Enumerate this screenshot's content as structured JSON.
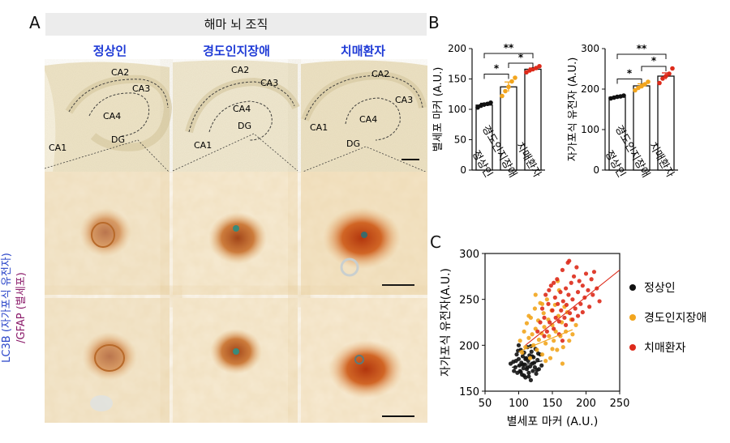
{
  "panel_a": {
    "letter": "A",
    "header": "해마 뇌 조직",
    "groups": [
      "정상인",
      "경도인지장애",
      "치매환자"
    ],
    "regions": [
      "CA1",
      "CA2",
      "CA3",
      "CA4",
      "DG"
    ],
    "stain_label_1": "LC3B (자가포식 유전자)",
    "stain_label_2": "/GFAP (별세포)"
  },
  "panel_b": {
    "letter": "B"
  },
  "panel_c": {
    "letter": "C"
  },
  "colors": {
    "normal": "#111111",
    "mci": "#f2a51d",
    "dementia": "#dd2a1a",
    "group_title": "#1f3bd6",
    "tissue_bg": "#f2ead2",
    "cell_brown": "#b8561a"
  },
  "chart_data": [
    {
      "type": "bar",
      "categories": [
        "정상인",
        "경도인지장애",
        "치매환자"
      ],
      "values": [
        107,
        137,
        166
      ],
      "points": [
        [
          103,
          106,
          108,
          109,
          111
        ],
        [
          122,
          130,
          137,
          146,
          152
        ],
        [
          161,
          164,
          166,
          168,
          171
        ]
      ],
      "errors": [
        3,
        8,
        2
      ],
      "ylabel": "별세포 마커 (A.U.)",
      "ylim": [
        0,
        200
      ],
      "yticks": [
        0,
        50,
        100,
        150,
        200
      ],
      "significance": [
        "*",
        "*",
        "**"
      ]
    },
    {
      "type": "bar",
      "categories": [
        "정상인",
        "경도인지장애",
        "치매환자"
      ],
      "values": [
        180,
        208,
        232
      ],
      "points": [
        [
          177,
          179,
          181,
          182,
          184
        ],
        [
          197,
          203,
          207,
          212,
          218
        ],
        [
          215,
          226,
          232,
          238,
          251
        ]
      ],
      "errors": [
        2,
        5,
        8
      ],
      "ylabel": "자가포식 유전자 (A.U.)",
      "ylim": [
        0,
        300
      ],
      "yticks": [
        0,
        100,
        200,
        300
      ],
      "significance": [
        "*",
        "*",
        "**"
      ]
    },
    {
      "type": "scatter",
      "xlabel": "별세포 마커 (A.U.)",
      "ylabel": "자가포식 유전자(A.U.)",
      "xlim": [
        50,
        250
      ],
      "ylim": [
        150,
        300
      ],
      "xticks": [
        50,
        100,
        150,
        200,
        250
      ],
      "yticks": [
        150,
        200,
        250,
        300
      ],
      "legend": [
        "정상인",
        "경도인지장애",
        "치매환자"
      ],
      "legend_position": "right",
      "series": [
        {
          "name": "정상인",
          "fit": [
            [
              90,
              176
            ],
            [
              135,
              183
            ]
          ],
          "points": [
            [
              92,
              182
            ],
            [
              95,
              176
            ],
            [
              97,
              190
            ],
            [
              98,
              170
            ],
            [
              100,
              185
            ],
            [
              101,
              178
            ],
            [
              102,
              172
            ],
            [
              103,
              195
            ],
            [
              104,
              181
            ],
            [
              105,
              168
            ],
            [
              106,
              188
            ],
            [
              107,
              175
            ],
            [
              108,
              192
            ],
            [
              109,
              179
            ],
            [
              110,
              165
            ],
            [
              111,
              186
            ],
            [
              112,
              174
            ],
            [
              113,
              198
            ],
            [
              114,
              183
            ],
            [
              115,
              170
            ],
            [
              116,
              189
            ],
            [
              117,
              177
            ],
            [
              118,
              162
            ],
            [
              119,
              193
            ],
            [
              120,
              180
            ],
            [
              121,
              172
            ],
            [
              122,
              187
            ],
            [
              124,
              176
            ],
            [
              125,
              196
            ],
            [
              126,
              169
            ],
            [
              128,
              184
            ],
            [
              130,
              174
            ],
            [
              132,
              190
            ],
            [
              134,
              178
            ],
            [
              96,
              183
            ],
            [
              99,
              194
            ],
            [
              103,
              171
            ],
            [
              106,
              179
            ],
            [
              110,
              185
            ],
            [
              115,
              166
            ],
            [
              120,
              188
            ],
            [
              88,
              180
            ],
            [
              93,
              172
            ],
            [
              113,
              176
            ],
            [
              118,
              199
            ],
            [
              123,
              181
            ],
            [
              127,
              173
            ],
            [
              129,
              191
            ],
            [
              100,
              200
            ],
            [
              108,
              167
            ]
          ]
        },
        {
          "name": "경도인지장애",
          "fit": [
            [
              100,
              193
            ],
            [
              180,
              217
            ]
          ],
          "points": [
            [
              102,
              205
            ],
            [
              105,
              192
            ],
            [
              108,
              215
            ],
            [
              110,
              198
            ],
            [
              112,
              224
            ],
            [
              115,
              208
            ],
            [
              117,
              186
            ],
            [
              118,
              230
            ],
            [
              120,
              212
            ],
            [
              122,
              200
            ],
            [
              124,
              240
            ],
            [
              125,
              218
            ],
            [
              127,
              195
            ],
            [
              129,
              227
            ],
            [
              130,
              206
            ],
            [
              132,
              246
            ],
            [
              134,
              213
            ],
            [
              135,
              190
            ],
            [
              137,
              235
            ],
            [
              138,
              220
            ],
            [
              140,
              202
            ],
            [
              142,
              250
            ],
            [
              144,
              228
            ],
            [
              145,
              210
            ],
            [
              147,
              186
            ],
            [
              149,
              238
            ],
            [
              150,
              222
            ],
            [
              152,
              205
            ],
            [
              154,
              244
            ],
            [
              155,
              215
            ],
            [
              157,
              195
            ],
            [
              159,
              232
            ],
            [
              160,
              260
            ],
            [
              162,
              210
            ],
            [
              164,
              225
            ],
            [
              166,
              198
            ],
            [
              168,
              242
            ],
            [
              170,
              215
            ],
            [
              172,
              236
            ],
            [
              175,
              205
            ],
            [
              178,
              228
            ],
            [
              180,
              212
            ],
            [
              150,
              196
            ],
            [
              140,
              183
            ],
            [
              115,
              232
            ],
            [
              125,
              255
            ],
            [
              135,
              245
            ],
            [
              165,
              180
            ],
            [
              185,
              222
            ],
            [
              158,
              270
            ]
          ]
        },
        {
          "name": "치매환자",
          "fit": [
            [
              110,
              200
            ],
            [
              250,
              282
            ]
          ],
          "points": [
            [
              128,
              215
            ],
            [
              132,
              225
            ],
            [
              135,
              240
            ],
            [
              138,
              230
            ],
            [
              140,
              255
            ],
            [
              142,
              215
            ],
            [
              144,
              245
            ],
            [
              146,
              225
            ],
            [
              148,
              265
            ],
            [
              150,
              238
            ],
            [
              152,
              218
            ],
            [
              154,
              252
            ],
            [
              155,
              230
            ],
            [
              157,
              272
            ],
            [
              158,
              245
            ],
            [
              160,
              226
            ],
            [
              162,
              258
            ],
            [
              163,
              238
            ],
            [
              165,
              282
            ],
            [
              166,
              248
            ],
            [
              168,
              230
            ],
            [
              170,
              262
            ],
            [
              171,
              244
            ],
            [
              173,
              290
            ],
            [
              174,
              255
            ],
            [
              176,
              235
            ],
            [
              178,
              268
            ],
            [
              180,
              250
            ],
            [
              182,
              275
            ],
            [
              184,
              240
            ],
            [
              186,
              285
            ],
            [
              188,
              258
            ],
            [
              190,
              270
            ],
            [
              192,
              245
            ],
            [
              195,
              265
            ],
            [
              198,
              252
            ],
            [
              200,
              278
            ],
            [
              203,
              260
            ],
            [
              205,
              242
            ],
            [
              208,
              272
            ],
            [
              210,
              255
            ],
            [
              212,
              280
            ],
            [
              216,
              262
            ],
            [
              220,
              248
            ],
            [
              160,
              212
            ],
            [
              170,
              222
            ],
            [
              180,
              228
            ],
            [
              188,
              232
            ],
            [
              145,
              260
            ],
            [
              175,
              292
            ],
            [
              195,
              236
            ],
            [
              152,
              268
            ],
            [
              138,
              210
            ],
            [
              165,
              205
            ]
          ]
        }
      ]
    }
  ]
}
